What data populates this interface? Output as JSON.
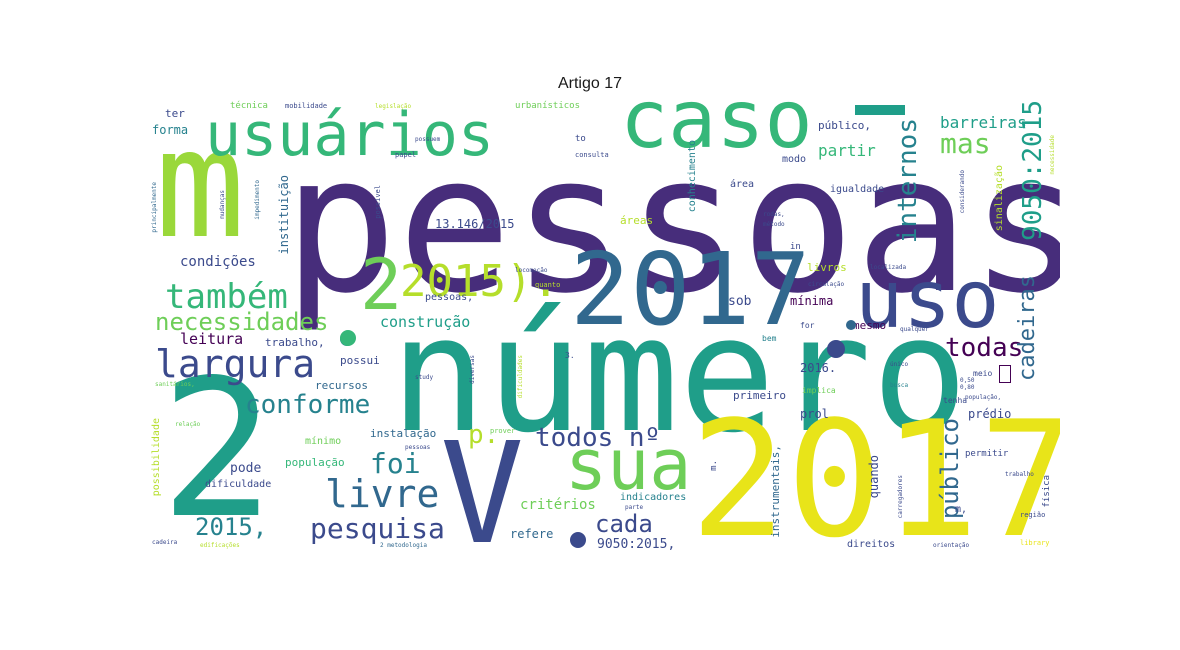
{
  "title": "Artigo 17",
  "words": {
    "pessoas": "pessoas",
    "numero": "número",
    "n2017_big": "2017",
    "n2017_mid": "2017",
    "n2_big": "2",
    "m_big": "m",
    "usuarios": "usuários",
    "caso": "caso",
    "uso": "uso",
    "sua": "sua",
    "v_big": "V",
    "largura": "largura",
    "tambem": "também",
    "necessidades": "necessidades",
    "n2015paren": "2015).",
    "n2_mid": "2",
    "livre": "livre",
    "conforme": "conforme",
    "todos_no": "todos nº",
    "foi": "foi",
    "pesquisa": "pesquisa",
    "cada": "cada",
    "n2015comma": "2015,",
    "todas": "todas",
    "mas": "mas",
    "interno": "internos",
    "cadeiras": "cadeiras",
    "n9050_vert": "9050:2015",
    "barreiras": "barreiras",
    "partir": "partir",
    "publico_vert": "público",
    "condicoes": "condições",
    "construcao": "construção",
    "leitura": "leitura",
    "trabalho": "trabalho,",
    "possui": "possui",
    "recursos": "recursos",
    "instalacao": "instalação",
    "populacao": "população",
    "minimo": "mínimo",
    "pode": "pode",
    "dificuldade": "dificuldade",
    "possibilidade": "possibilidade",
    "criterios": "critérios",
    "indicadores": "indicadores",
    "refere": "refere",
    "n9050comma": "9050:2015,",
    "direitos": "direitos",
    "n13146": "13.146/2015",
    "areas": "áreas",
    "sob": "sob",
    "minima": "mínima",
    "mesmo": "mesmo",
    "n2016": "2016.",
    "primeiro": "primeiro",
    "prol": "prol",
    "predio": "prédio",
    "instrumentais": "instrumentais,",
    "quando": "quando",
    "livros": "livros",
    "publico_comma": "público,",
    "igualdade": "igualdade",
    "modo": "modo",
    "area": "área",
    "forma": "forma",
    "ter": "ter",
    "tecnica": "técnica",
    "mobilidade": "mobilidade",
    "legislacao": "legislação",
    "urbanisticos": "urbanísticos",
    "instituicao": "instituição",
    "conhecimento": "conhecimento",
    "sinalizacao": "sinalização",
    "p_mid": "p.",
    "m_small": "m,",
    "to": "to",
    "in": "in",
    "bem": "bem",
    "meio": "meio",
    "implica": "implica",
    "permitir": "permitir",
    "fisica": "física",
    "regiao": "região",
    "library": "library",
    "pessoas_comma": "pessoas,",
    "possivel": "possível",
    "consulta": "consulta",
    "papel": "papel",
    "principalmente": "principalmente",
    "possuem": "possuem",
    "for": "for",
    "qualquer": "qualquer",
    "tenha": "tenha",
    "prover": "prover",
    "fazer": "fazer",
    "parte": "parte",
    "ainda": "ainda",
    "locomocao": "locomoção",
    "circulacao": "circulação",
    "localizada": "localizada",
    "rodas": "rodas,",
    "metodo": "método",
    "diferentes": "diferentes",
    "cadeira": "cadeira",
    "dificuldades": "dificuldades",
    "metodologia": "2 metodologia",
    "dessa": "dessa",
    "study": "study",
    "deficiencia": "deficiência",
    "necessidade": "necessidade",
    "relacao": "relação",
    "sanitarios": "sanitários,",
    "considerando": "considerando",
    "obstaculos": "obstáculos",
    "impedimento": "impedimento",
    "mudancas": "mudanças",
    "edificacoes": "edificações",
    "diversas": "diversas",
    "quanto": "quanto",
    "n3": "3.",
    "m_mid": "m.",
    "gap_word": "uso",
    "unico": "único",
    "acesso": "acesso",
    "sei": "sei",
    "busca": "busca",
    "pode_vert": "pode",
    "carregadores": "carregadores",
    "n0_50": "0,50",
    "n0_80": "0,80",
    "populacao_comma": "população,",
    "trabalho_small": "trabalho",
    "orientacao": "orientação",
    "ele": "ele",
    "pessoas_small": "pessoas"
  },
  "colors": {
    "purple_dark": "#440154",
    "indigo": "#472d7b",
    "navy": "#3b4a8c",
    "blue": "#31688e",
    "teal": "#26828e",
    "green_teal": "#1f9e89",
    "green": "#35b779",
    "light_green": "#6ece58",
    "lime": "#b5de2b",
    "yellow": "#e8e419"
  }
}
